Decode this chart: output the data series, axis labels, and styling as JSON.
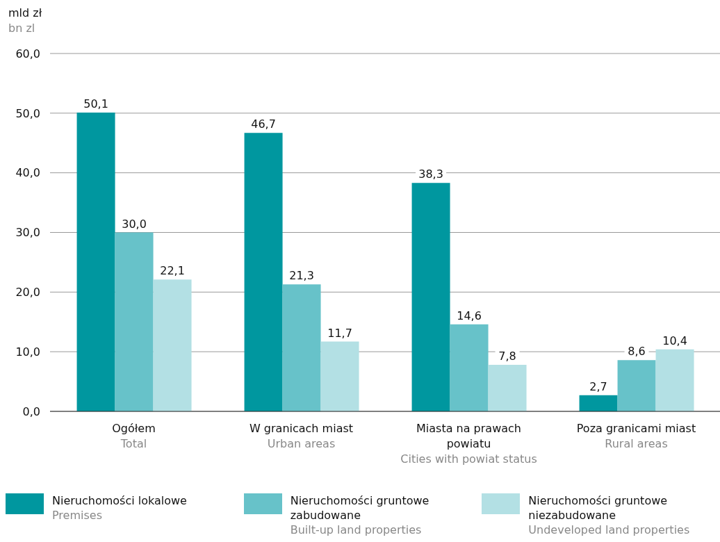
{
  "chart_data": {
    "type": "bar",
    "ylabel": "mld zł\nbn zl",
    "categories": [
      "Ogółem\nTotal",
      "W granicach miast\nUrban areas",
      "Miasta na prawach powiatu\nCities with powiat status",
      "Poza granicami miast\nRural areas"
    ],
    "series": [
      {
        "name": "Nieruchomości lokalowe\nPremises",
        "color": "#00979f",
        "values": [
          50.1,
          46.7,
          38.3,
          2.7
        ],
        "value_labels": [
          "50,1",
          "46,7",
          "38,3",
          "2,7"
        ]
      },
      {
        "name": "Nieruchomości gruntowe zabudowane\nBuilt-up land properties",
        "color": "#67c2c9",
        "values": [
          30.0,
          21.3,
          14.6,
          8.6
        ],
        "value_labels": [
          "30,0",
          "21,3",
          "14,6",
          "8,6"
        ]
      },
      {
        "name": "Nieruchomości gruntowe niezabudowane\nUndeveloped land properties",
        "color": "#b3e0e4",
        "values": [
          22.1,
          11.7,
          7.8,
          10.4
        ],
        "value_labels": [
          "22,1",
          "11,7",
          "7,8",
          "10,4"
        ]
      }
    ],
    "ylim": [
      0,
      60
    ],
    "yticks": [
      {
        "value": 0,
        "label": "0,0"
      },
      {
        "value": 10,
        "label": "10,0"
      },
      {
        "value": 20,
        "label": "20,0"
      },
      {
        "value": 30,
        "label": "30,0"
      },
      {
        "value": 40,
        "label": "40,0"
      },
      {
        "value": 50,
        "label": "50,0"
      },
      {
        "value": 60,
        "label": "60,0"
      }
    ],
    "grid": "y",
    "legend": "bottom"
  }
}
